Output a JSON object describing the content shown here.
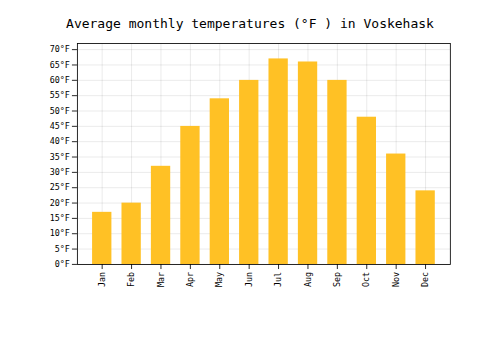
{
  "chart_data": {
    "type": "bar",
    "title": "Average monthly temperatures (°F ) in Voskehask",
    "categories": [
      "Jan",
      "Feb",
      "Mar",
      "Apr",
      "May",
      "Jun",
      "Jul",
      "Aug",
      "Sep",
      "Oct",
      "Nov",
      "Dec"
    ],
    "values": [
      17,
      20,
      32,
      45,
      54,
      60,
      67,
      66,
      60,
      48,
      36,
      24
    ],
    "color": "#FFC125",
    "ylim": [
      0,
      72
    ],
    "yticks": [
      {
        "value": 0,
        "label": "0°F"
      },
      {
        "value": 5,
        "label": "5°F"
      },
      {
        "value": 10,
        "label": "10°F"
      },
      {
        "value": 15,
        "label": "15°F"
      },
      {
        "value": 20,
        "label": "20°F"
      },
      {
        "value": 25,
        "label": "25°F"
      },
      {
        "value": 30,
        "label": "30°F"
      },
      {
        "value": 35,
        "label": "35°F"
      },
      {
        "value": 40,
        "label": "40°F"
      },
      {
        "value": 45,
        "label": "45°F"
      },
      {
        "value": 50,
        "label": "50°F"
      },
      {
        "value": 55,
        "label": "55°F"
      },
      {
        "value": 60,
        "label": "60°F"
      },
      {
        "value": 65,
        "label": "65°F"
      },
      {
        "value": 70,
        "label": "70°F"
      }
    ],
    "grid": true
  }
}
